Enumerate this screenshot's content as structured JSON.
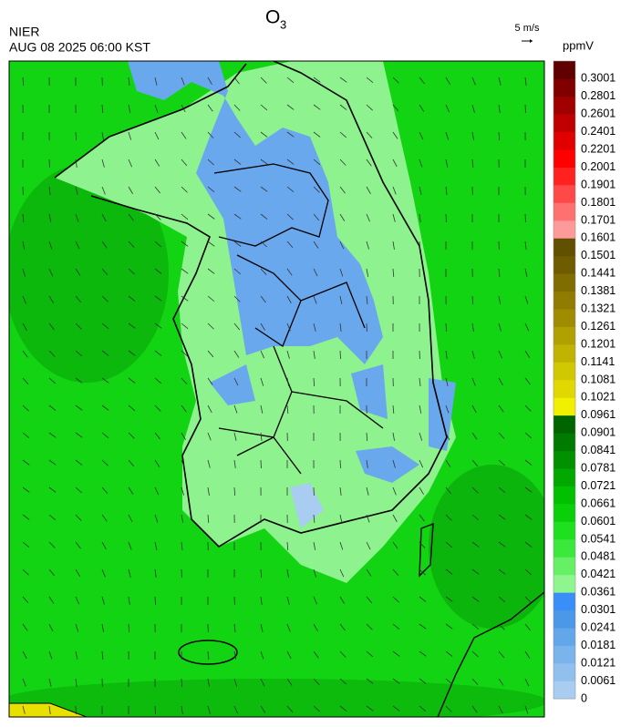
{
  "header": {
    "title": {
      "text": "O",
      "subscript": "3"
    },
    "source": "NIER",
    "datetime": "AUG 08 2025 06:00 KST",
    "wind_scale": "5 m/s"
  },
  "colorbar": {
    "unit": "ppmV",
    "ticks": [
      0,
      0.0061,
      0.0121,
      0.0181,
      0.0241,
      0.0301,
      0.0361,
      0.0421,
      0.0481,
      0.0541,
      0.0601,
      0.0661,
      0.0721,
      0.0781,
      0.0841,
      0.0901,
      0.0961,
      0.1021,
      0.1081,
      0.1141,
      0.1201,
      0.1261,
      0.1321,
      0.1381,
      0.1441,
      0.1501,
      0.1601,
      0.1701,
      0.1801,
      0.1901,
      0.2001,
      0.2201,
      0.2401,
      0.2601,
      0.2801,
      0.3001
    ],
    "colors": [
      "#a8cdf0",
      "#92c0ee",
      "#7bb3ec",
      "#64a6ea",
      "#4b98e8",
      "#3a8ef8",
      "#8ff58f",
      "#66f066",
      "#3de83d",
      "#1ee01e",
      "#0ad00a",
      "#00c000",
      "#00a800",
      "#009000",
      "#007a00",
      "#006400",
      "#f0f000",
      "#e0d800",
      "#d0c800",
      "#c0b400",
      "#b0a000",
      "#a08c00",
      "#907c00",
      "#806c00",
      "#705c00",
      "#605000",
      "#ff9a9a",
      "#ff7070",
      "#ff4848",
      "#ff2020",
      "#ff0000",
      "#e00000",
      "#c00000",
      "#a00000",
      "#800000",
      "#600000"
    ]
  }
}
